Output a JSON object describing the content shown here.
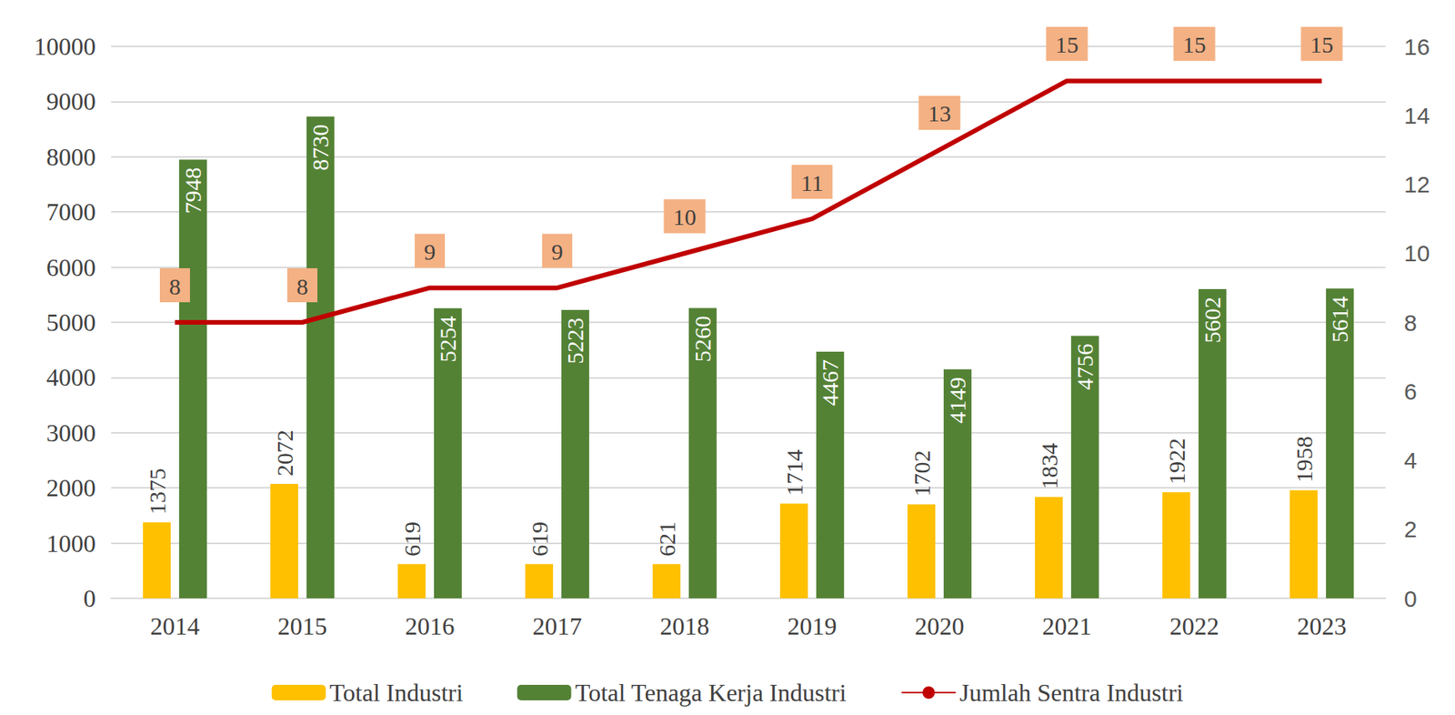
{
  "chart_data": {
    "type": "bar",
    "categories": [
      "2014",
      "2015",
      "2016",
      "2017",
      "2018",
      "2019",
      "2020",
      "2021",
      "2022",
      "2023"
    ],
    "series": [
      {
        "name": "Total Industri",
        "type": "bar",
        "color": "#FFC000",
        "values": [
          1375,
          2072,
          619,
          619,
          621,
          1714,
          1702,
          1834,
          1922,
          1958
        ]
      },
      {
        "name": "Total Tenaga Kerja Industri",
        "type": "bar",
        "color": "#548235",
        "values": [
          7948,
          8730,
          5254,
          5223,
          5260,
          4467,
          4149,
          4756,
          5602,
          5614
        ]
      },
      {
        "name": "Jumlah Sentra Industri",
        "type": "line",
        "axis": "y2",
        "color": "#C00000",
        "values": [
          8,
          8,
          9,
          9,
          10,
          11,
          13,
          15,
          15,
          15
        ]
      }
    ],
    "ylim": [
      0,
      10000
    ],
    "yticks": [
      0,
      1000,
      2000,
      3000,
      4000,
      5000,
      6000,
      7000,
      8000,
      9000,
      10000
    ],
    "y2lim": [
      0,
      16
    ],
    "y2ticks": [
      0,
      2,
      4,
      6,
      8,
      10,
      12,
      14,
      16
    ],
    "grid": true,
    "data_labels": true,
    "legend": "bottom"
  }
}
